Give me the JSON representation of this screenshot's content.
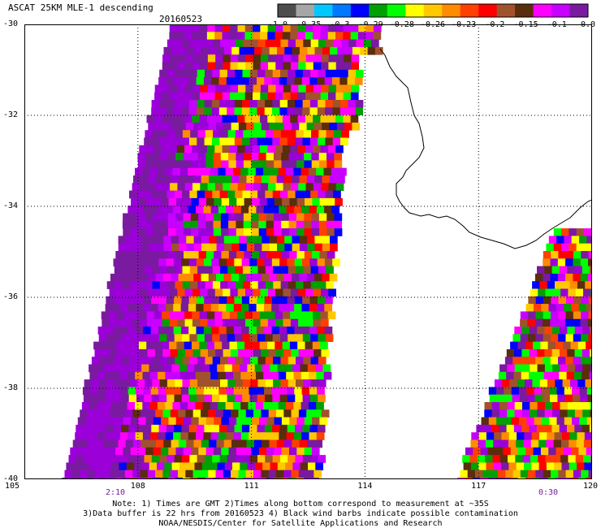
{
  "header": {
    "title": "ASCAT 25KM MLE-1 descending",
    "date": "20160523"
  },
  "legend": {
    "ticks": [
      "-1.0",
      "-0.35",
      "-0.3",
      "-0.29",
      "-0.28",
      "-0.26",
      "-0.23",
      "-0.2",
      "-0.15",
      "-0.1",
      "0.0"
    ],
    "colors": [
      "#4d4d4d",
      "#a6a6a6",
      "#00c8ff",
      "#0078ff",
      "#0000ff",
      "#00a000",
      "#00ff00",
      "#ffff00",
      "#ffc800",
      "#ff8c00",
      "#ff4000",
      "#ff0000",
      "#a0522d",
      "#5a2d0c",
      "#ff00ff",
      "#c800ff",
      "#7a1aa0"
    ]
  },
  "map": {
    "lat_labels": [
      "-30",
      "-32",
      "-34",
      "-36",
      "-38",
      "-40"
    ],
    "lon_labels": [
      "105",
      "108",
      "111",
      "114",
      "117",
      "120"
    ],
    "lat_range": [
      -30,
      -40
    ],
    "lon_range": [
      105,
      120
    ],
    "grid": true
  },
  "swaths": {
    "times": [
      "2:10",
      "0:30"
    ],
    "palette": [
      "#7a1aa0",
      "#9b00d8",
      "#c800ff",
      "#ff00ff",
      "#ff0000",
      "#ff4000",
      "#ff8c00",
      "#ffc800",
      "#ffff00",
      "#00ff00",
      "#00a000",
      "#0000ff",
      "#a0522d",
      "#5a2d0c"
    ]
  },
  "notes": {
    "line1": "Note: 1) Times are GMT 2)Times along bottom correspond to measurement at ~35S",
    "line2": "3)Data buffer is 22 hrs from 20160523 4) Black wind barbs indicate possible contamination",
    "line3": "NOAA/NESDIS/Center for Satellite Applications and Research"
  }
}
